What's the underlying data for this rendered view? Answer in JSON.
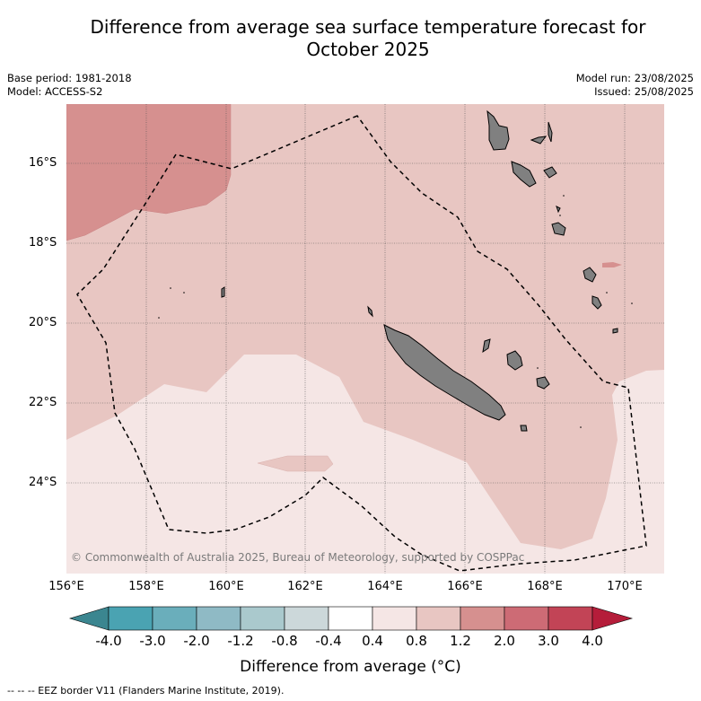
{
  "title_line1": "Difference from average sea surface temperature forecast for",
  "title_line2": "October 2025",
  "meta_left": {
    "base_period": "Base period: 1981-2018",
    "model": "Model: ACCESS-S2"
  },
  "meta_right": {
    "model_run": "Model run: 23/08/2025",
    "issued": "Issued: 25/08/2025"
  },
  "lat_labels": [
    "16°S",
    "18°S",
    "20°S",
    "22°S",
    "24°S"
  ],
  "lon_labels": [
    "156°E",
    "158°E",
    "160°E",
    "162°E",
    "164°E",
    "166°E",
    "168°E",
    "170°E"
  ],
  "copyright": "© Commonwealth of Australia 2025, Bureau of Meteorology, supported by COSPPac",
  "colorbar": {
    "ticks": [
      "-4.0",
      "-3.0",
      "-2.0",
      "-1.2",
      "-0.8",
      "-0.4",
      "0.4",
      "0.8",
      "1.2",
      "2.0",
      "3.0",
      "4.0"
    ],
    "colors": [
      "#4aa3b2",
      "#6aaebb",
      "#8fbac5",
      "#aac9cd",
      "#ccd8da",
      "#ffffff",
      "#f5e6e5",
      "#e8c6c2",
      "#d6908f",
      "#cd6b75",
      "#c24456"
    ],
    "under_color": "#3b8690",
    "over_color": "#b51d3a",
    "label": "Difference from average (°C)"
  },
  "map_colors": {
    "bin_0_4_0_8": "#f5e6e5",
    "bin_0_8_1_2": "#e8c6c2",
    "bin_1_2_2_0": "#d6908f",
    "land": "#808080"
  },
  "eez_note": "--  --  -- EEZ border V11 (Flanders Marine Institute, 2019)."
}
